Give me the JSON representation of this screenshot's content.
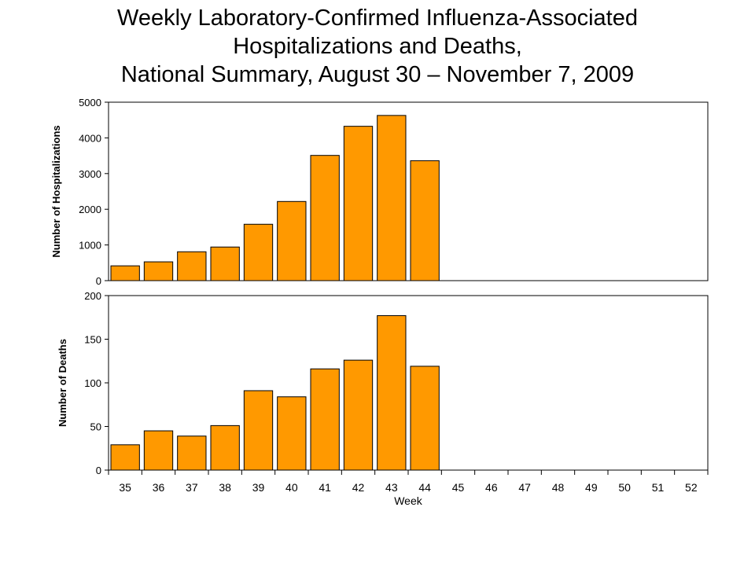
{
  "chart_data": [
    {
      "type": "bar",
      "title": "Weekly Laboratory-Confirmed Influenza-Associated Hospitalizations and Deaths, National Summary, August 30 – November 7, 2009",
      "ylabel": "Number of Hospitalizations",
      "xlabel": "",
      "categories": [
        "35",
        "36",
        "37",
        "38",
        "39",
        "40",
        "41",
        "42",
        "43",
        "44",
        "45",
        "46",
        "47",
        "48",
        "49",
        "50",
        "51",
        "52"
      ],
      "values": [
        415,
        527,
        809,
        942,
        1580,
        2218,
        3509,
        4325,
        4629,
        3361,
        null,
        null,
        null,
        null,
        null,
        null,
        null,
        null
      ],
      "ylim": [
        0,
        5000
      ],
      "yticks": [
        "0",
        "1000",
        "2000",
        "3000",
        "4000",
        "5000"
      ],
      "bar_color": "#FF9900",
      "grid": false
    },
    {
      "type": "bar",
      "ylabel": "Number of Deaths",
      "xlabel": "Week",
      "categories": [
        "35",
        "36",
        "37",
        "38",
        "39",
        "40",
        "41",
        "42",
        "43",
        "44",
        "45",
        "46",
        "47",
        "48",
        "49",
        "50",
        "51",
        "52"
      ],
      "values": [
        29,
        45,
        39,
        51,
        91,
        84,
        116,
        126,
        177,
        119,
        null,
        null,
        null,
        null,
        null,
        null,
        null,
        null
      ],
      "ylim": [
        0,
        200
      ],
      "yticks": [
        "0",
        "50",
        "100",
        "150",
        "200"
      ],
      "bar_color": "#FF9900",
      "grid": false
    }
  ],
  "title_lines": [
    "Weekly Laboratory-Confirmed Influenza-Associated",
    "Hospitalizations and Deaths,",
    "National Summary, August 30 – November 7, 2009"
  ]
}
